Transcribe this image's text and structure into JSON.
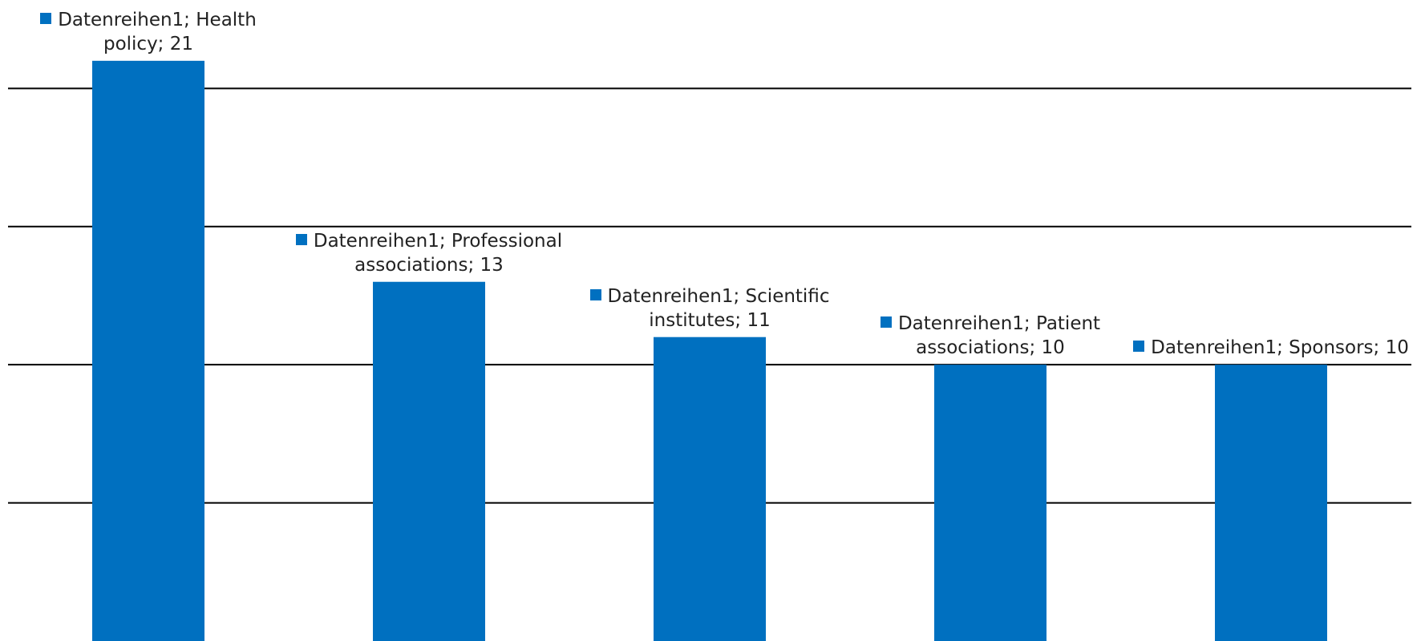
{
  "chart_data": {
    "type": "bar",
    "series_name": "Datenreihen1",
    "categories": [
      "Health policy",
      "Professional associations",
      "Scientific institutes",
      "Patient associations",
      "Sponsors"
    ],
    "values": [
      21,
      13,
      11,
      10,
      10
    ],
    "value_labels": [
      "Datenreihen1; Health policy; 21",
      "Datenreihen1; Professional associations; 13",
      "Datenreihen1; Scientific institutes; 11",
      "Datenreihen1; Patient associations; 10",
      "Datenreihen1; Sponsors; 10"
    ],
    "color": "#0070c0",
    "ylim": [
      0,
      23.2
    ],
    "yticks": [
      5,
      10,
      15,
      20
    ],
    "grid": true
  }
}
